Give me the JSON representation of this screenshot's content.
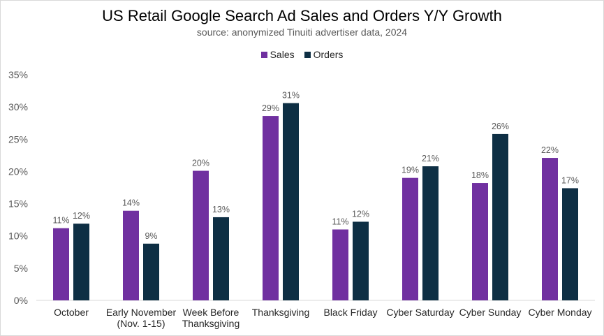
{
  "chart_data": {
    "type": "bar",
    "title": "US Retail Google Search Ad Sales and Orders Y/Y Growth",
    "subtitle": "source: anonymized Tinuiti advertiser data, 2024",
    "xlabel": "",
    "ylabel": "",
    "ylim": [
      0,
      35
    ],
    "yticks": [
      0,
      5,
      10,
      15,
      20,
      25,
      30,
      35
    ],
    "ytick_labels": [
      "0%",
      "5%",
      "10%",
      "15%",
      "20%",
      "25%",
      "30%",
      "35%"
    ],
    "grid": false,
    "legend_position": "top-center",
    "categories": [
      [
        "October"
      ],
      [
        "Early November",
        "(Nov. 1-15)"
      ],
      [
        "Week Before",
        "Thanksgiving"
      ],
      [
        "Thanksgiving"
      ],
      [
        "Black Friday"
      ],
      [
        "Cyber Saturday"
      ],
      [
        "Cyber Sunday"
      ],
      [
        "Cyber Monday"
      ]
    ],
    "series": [
      {
        "name": "Sales",
        "color": "#7030a0",
        "values": [
          11.2,
          13.9,
          20.1,
          28.6,
          11.0,
          19.0,
          18.2,
          22.1
        ],
        "labels": [
          "11%",
          "14%",
          "20%",
          "29%",
          "11%",
          "19%",
          "18%",
          "22%"
        ]
      },
      {
        "name": "Orders",
        "color": "#0e2f44",
        "values": [
          11.9,
          8.8,
          12.9,
          30.6,
          12.2,
          20.8,
          25.8,
          17.4
        ],
        "labels": [
          "12%",
          "9%",
          "13%",
          "31%",
          "12%",
          "21%",
          "26%",
          "17%"
        ]
      }
    ]
  }
}
